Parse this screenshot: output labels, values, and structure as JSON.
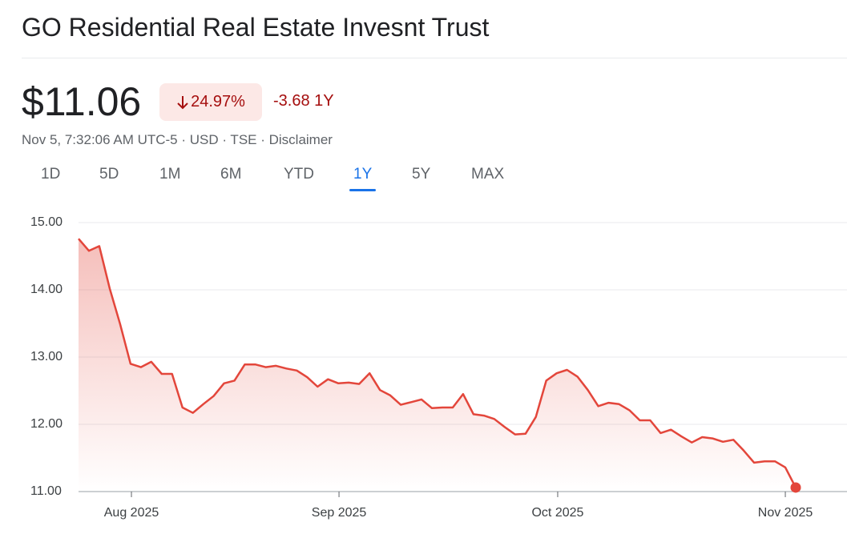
{
  "header": {
    "title": "GO Residential Real Estate Invesnt Trust",
    "price": "$11.06",
    "change_percent": "24.97%",
    "change": "-3.68 1Y",
    "meta": "Nov 5, 7:32:06 AM UTC-5 · USD · TSE ·",
    "disclaimer": "Disclaimer"
  },
  "tabs": {
    "items": [
      "1D",
      "5D",
      "1M",
      "6M",
      "YTD",
      "1Y",
      "5Y",
      "MAX"
    ],
    "selected": 5
  },
  "chart_data": {
    "type": "area-line",
    "color": "#e3463b",
    "grid": true,
    "x": [
      0,
      1,
      2,
      3,
      4,
      5,
      6,
      7,
      8,
      9,
      10,
      11,
      12,
      13,
      14,
      15,
      16,
      17,
      18,
      19,
      20,
      21,
      22,
      23,
      24,
      25,
      26,
      27,
      28,
      29,
      30,
      31,
      32,
      33,
      34,
      35,
      36,
      37,
      38,
      39,
      40,
      41,
      42,
      43,
      44,
      45,
      46,
      47,
      48,
      49,
      50,
      51,
      52,
      53,
      54,
      55,
      56,
      57,
      58,
      59,
      60,
      61,
      62,
      63,
      64,
      65,
      66,
      67,
      68,
      69
    ],
    "values": [
      14.76,
      14.58,
      14.65,
      14.02,
      13.49,
      12.9,
      12.85,
      12.93,
      12.75,
      12.75,
      12.25,
      12.17,
      12.3,
      12.42,
      12.61,
      12.65,
      12.89,
      12.89,
      12.85,
      12.87,
      12.83,
      12.8,
      12.7,
      12.56,
      12.67,
      12.61,
      12.62,
      12.6,
      12.76,
      12.51,
      12.43,
      12.29,
      12.33,
      12.37,
      12.24,
      12.25,
      12.25,
      12.45,
      12.15,
      12.13,
      12.08,
      11.96,
      11.85,
      11.86,
      12.11,
      12.65,
      12.76,
      12.81,
      12.71,
      12.51,
      12.27,
      12.32,
      12.3,
      12.21,
      12.06,
      12.06,
      11.87,
      11.92,
      11.82,
      11.73,
      11.81,
      11.79,
      11.74,
      11.77,
      11.61,
      11.43,
      11.45,
      11.45,
      11.36,
      11.06
    ],
    "xlim": [
      0,
      69
    ],
    "xticks": [
      {
        "value": 5.09,
        "label": "Aug 2025"
      },
      {
        "value": 25.06,
        "label": "Sep 2025"
      },
      {
        "value": 46.1,
        "label": "Oct 2025"
      },
      {
        "value": 68.0,
        "label": "Nov 2025"
      }
    ],
    "ylim": [
      11,
      15
    ],
    "yticks": [
      {
        "value": 11,
        "label": "11.00"
      },
      {
        "value": 12,
        "label": "12.00"
      },
      {
        "value": 13,
        "label": "13.00"
      },
      {
        "value": 14,
        "label": "14.00"
      },
      {
        "value": 15,
        "label": "15.00"
      }
    ]
  }
}
